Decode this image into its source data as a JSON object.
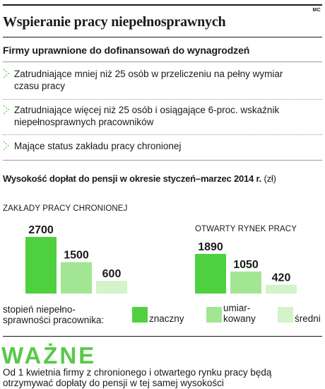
{
  "credit": "MC",
  "title": "Wspieranie pracy niepełnosprawnych",
  "subtitle": "Firmy uprawnione do dofinansowań do wynagrodzeń",
  "items": [
    {
      "line1": "Zatrudniające mniej niż 25 osób w przeliczeniu na pełny wymiar",
      "line2": "czasu pracy"
    },
    {
      "line1": "Zatrudniające więcej niż 25 osób i osiągające 6-proc. wskaźnik",
      "line2": "niepełnosprawnych pracowników"
    },
    {
      "line1": "Mające status zakładu pracy chronionej",
      "line2": ""
    }
  ],
  "colors": {
    "znaczny": "#4fd13f",
    "umiarkowany": "#a2e693",
    "sredni": "#d3f3c8",
    "accent": "#59c94a"
  },
  "chart_data": {
    "type": "bar",
    "title": "Wysokość dopłat do pensji w okresie styczeń–marzec 2014 r.",
    "unit": "(zł)",
    "categories": [
      "ZAKŁADY PRACY CHRONIONEJ",
      "OTWARTY RYNEK PRACY"
    ],
    "series": [
      {
        "name": "znaczny",
        "values": [
          2700,
          1890
        ]
      },
      {
        "name": "umiarkowany",
        "values": [
          1500,
          1050
        ]
      },
      {
        "name": "średni",
        "values": [
          600,
          420
        ]
      }
    ],
    "value_labels": [
      [
        "2700",
        "1500",
        "600"
      ],
      [
        "1890",
        "1050",
        "420"
      ]
    ],
    "legend_title_lines": [
      "stopień niepełno-",
      "sprawności pracownika:"
    ],
    "legend_labels": [
      [
        "znaczny"
      ],
      [
        "umiar-",
        "kowany"
      ],
      [
        "średni"
      ]
    ],
    "ylim": [
      0,
      2700
    ],
    "grid": false,
    "legend_position": "bottom"
  },
  "wazne": "WAŻNE",
  "note": [
    "Od 1 kwietnia firmy z chronionego i otwartego rynku pracy będą",
    "otrzymywać dopłaty do pensji w tej samej wysokości"
  ]
}
